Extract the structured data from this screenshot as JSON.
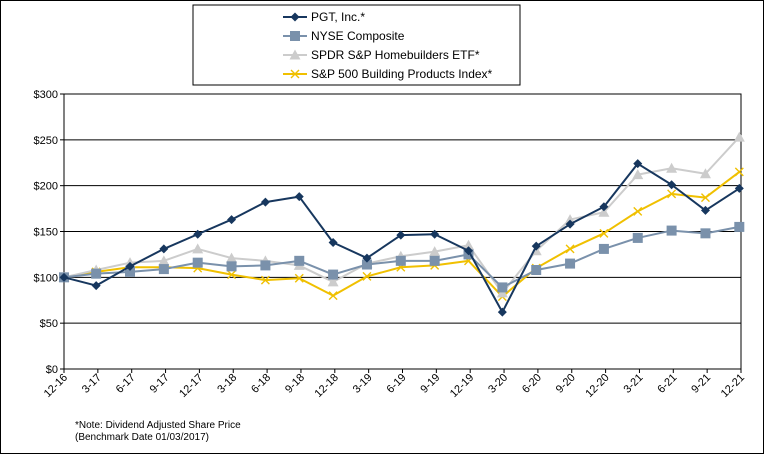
{
  "chart_data": {
    "type": "line",
    "title": "",
    "xlabel": "",
    "ylabel": "",
    "ylim": [
      0,
      300
    ],
    "y_ticks": [
      0,
      50,
      100,
      150,
      200,
      250,
      300
    ],
    "y_tick_labels": [
      "$0",
      "$50",
      "$100",
      "$150",
      "$200",
      "$250",
      "$300"
    ],
    "grid": true,
    "legend_position": "top-center",
    "categories": [
      "12-16",
      "3-17",
      "6-17",
      "9-17",
      "12-17",
      "3-18",
      "6-18",
      "9-18",
      "12-18",
      "3-19",
      "6-19",
      "9-19",
      "12-19",
      "3-20",
      "6-20",
      "9-20",
      "12-20",
      "3-21",
      "6-21",
      "9-21",
      "12-21"
    ],
    "series": [
      {
        "name": "PGT, Inc.*",
        "color": "#17375e",
        "marker": "diamond",
        "points": [
          [
            0,
            100
          ],
          [
            0.95,
            91
          ],
          [
            1.95,
            112
          ],
          [
            2.95,
            131
          ],
          [
            3.95,
            147
          ],
          [
            4.95,
            163
          ],
          [
            5.95,
            182
          ],
          [
            6.95,
            188
          ],
          [
            7.95,
            138
          ],
          [
            8.95,
            121
          ],
          [
            9.95,
            146
          ],
          [
            10.95,
            147
          ],
          [
            11.95,
            129
          ],
          [
            12.95,
            62
          ],
          [
            13.95,
            134
          ],
          [
            14.95,
            158
          ],
          [
            15.95,
            177
          ],
          [
            16.95,
            224
          ],
          [
            17.95,
            201
          ],
          [
            18.95,
            173
          ],
          [
            19.95,
            197
          ]
        ]
      },
      {
        "name": "NYSE Composite",
        "color": "#7a91ab",
        "marker": "square",
        "points": [
          [
            0,
            100
          ],
          [
            0.95,
            104
          ],
          [
            1.95,
            106
          ],
          [
            2.95,
            109
          ],
          [
            3.95,
            116
          ],
          [
            4.95,
            112
          ],
          [
            5.95,
            113
          ],
          [
            6.95,
            118
          ],
          [
            7.95,
            103
          ],
          [
            8.95,
            114
          ],
          [
            9.95,
            118
          ],
          [
            10.95,
            118
          ],
          [
            11.95,
            125
          ],
          [
            12.95,
            89
          ],
          [
            13.95,
            108
          ],
          [
            14.95,
            115
          ],
          [
            15.95,
            131
          ],
          [
            16.95,
            143
          ],
          [
            17.95,
            151
          ],
          [
            18.95,
            148
          ],
          [
            19.95,
            155
          ]
        ]
      },
      {
        "name": "SPDR S&P Homebuilders ETF*",
        "color": "#cccccc",
        "marker": "triangle",
        "points": [
          [
            0,
            100
          ],
          [
            0.95,
            108
          ],
          [
            1.95,
            116
          ],
          [
            2.95,
            118
          ],
          [
            3.95,
            131
          ],
          [
            4.95,
            121
          ],
          [
            5.95,
            118
          ],
          [
            6.95,
            113
          ],
          [
            7.95,
            95
          ],
          [
            8.95,
            115
          ],
          [
            9.95,
            123
          ],
          [
            10.95,
            128
          ],
          [
            11.95,
            135
          ],
          [
            12.95,
            83
          ],
          [
            13.95,
            129
          ],
          [
            14.95,
            163
          ],
          [
            15.95,
            171
          ],
          [
            16.95,
            212
          ],
          [
            17.95,
            219
          ],
          [
            18.95,
            213
          ],
          [
            19.95,
            253
          ]
        ]
      },
      {
        "name": "S&P 500 Building Products Index*",
        "color": "#f0c000",
        "marker": "x",
        "points": [
          [
            0,
            100
          ],
          [
            0.95,
            106
          ],
          [
            1.95,
            111
          ],
          [
            2.95,
            111
          ],
          [
            3.95,
            110
          ],
          [
            4.95,
            103
          ],
          [
            5.95,
            97
          ],
          [
            6.95,
            99
          ],
          [
            7.95,
            80
          ],
          [
            8.95,
            101
          ],
          [
            9.95,
            111
          ],
          [
            10.95,
            113
          ],
          [
            11.95,
            118
          ],
          [
            12.95,
            79
          ],
          [
            13.95,
            110
          ],
          [
            14.95,
            131
          ],
          [
            15.95,
            148
          ],
          [
            16.95,
            172
          ],
          [
            17.95,
            191
          ],
          [
            18.95,
            187
          ],
          [
            19.95,
            215
          ]
        ]
      }
    ]
  },
  "notes": {
    "line1": "*Note: Dividend Adjusted Share Price",
    "line2": "(Benchmark Date 01/03/2017)"
  }
}
